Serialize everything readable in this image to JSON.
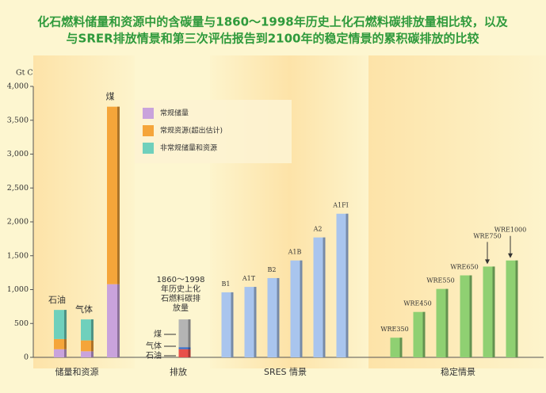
{
  "chart_data": {
    "type": "grouped-stacked-bar",
    "title": [
      "化石燃料储量和资源中的含碳量与1860～1998年历史上化石燃料碳排放量相比较，以及",
      "与SRER排放情景和第三次评估报告到2100年的稳定情景的累积碳排放的比较"
    ],
    "y_label": "Gt C",
    "ylim": [
      0,
      4000
    ],
    "yticks": [
      0,
      500,
      {
        "value": 1000,
        "label": "1,000"
      },
      {
        "value": 1500,
        "label": "1,500"
      },
      {
        "value": 2000,
        "label": "2,000"
      },
      {
        "value": 2500,
        "label": "2,500"
      },
      {
        "value": 3000,
        "label": "3,000"
      },
      {
        "value": 3500,
        "label": "3,500"
      },
      {
        "value": 4000,
        "label": "4,000"
      }
    ],
    "groups": [
      {
        "name": "储量和资源",
        "categories": [
          "石油",
          "气体",
          "煤"
        ],
        "series": [
          {
            "name": "常规储量",
            "color": "#c9a3dc",
            "values": [
              120,
              90,
              1080
            ]
          },
          {
            "name": "常规资源(超出估计)",
            "color": "#f5a53a",
            "values": [
              150,
              160,
              2620
            ]
          },
          {
            "name": "非常规储量和资源",
            "color": "#6fd0bc",
            "values": [
              430,
              310,
              null
            ]
          }
        ]
      },
      {
        "name": "排放",
        "annotation": [
          "1860～1998",
          "年历史上化",
          "石燃料碳排",
          "放量"
        ],
        "segments": [
          {
            "name": "石油",
            "color": "#e8504a",
            "value": 120
          },
          {
            "name": "气体",
            "color": "#3b6fc9",
            "value": 30
          },
          {
            "name": "煤",
            "color": "#b4b4b4",
            "value": 410
          }
        ]
      },
      {
        "name": "SRES 情景",
        "color": "#a9c5ee",
        "categories": [
          "B1",
          "A1T",
          "B2",
          "A1B",
          "A2",
          "A1FI"
        ],
        "values": [
          960,
          1040,
          1170,
          1430,
          1770,
          2120
        ]
      },
      {
        "name": "稳定情景",
        "color": "#8fd072",
        "categories": [
          "WRE350",
          "WRE450",
          "WRE550",
          "WRE650",
          "WRE750",
          "WRE1000"
        ],
        "values": [
          290,
          670,
          1010,
          1210,
          1340,
          1430
        ]
      }
    ]
  }
}
